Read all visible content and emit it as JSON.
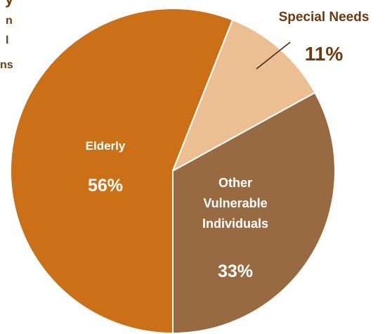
{
  "chart_data": {
    "type": "pie",
    "title": "",
    "slices": [
      {
        "name_lines": [
          "Elderly"
        ],
        "value": 56,
        "value_label": "56%",
        "color": "#cc7018",
        "label_color": "#ffffff"
      },
      {
        "name_lines": [
          "Special Needs"
        ],
        "value": 11,
        "value_label": "11%",
        "color": "#ecbf93",
        "label_color": "#6b3a10"
      },
      {
        "name_lines": [
          "Other",
          "Vulnerable",
          "Individuals"
        ],
        "value": 33,
        "value_label": "33%",
        "color": "#976a42",
        "label_color": "#ffffff"
      }
    ],
    "cropped_label_fragments": [
      "y",
      "n",
      "l",
      "ns"
    ],
    "cropped_label_color": "#6b3a10"
  }
}
